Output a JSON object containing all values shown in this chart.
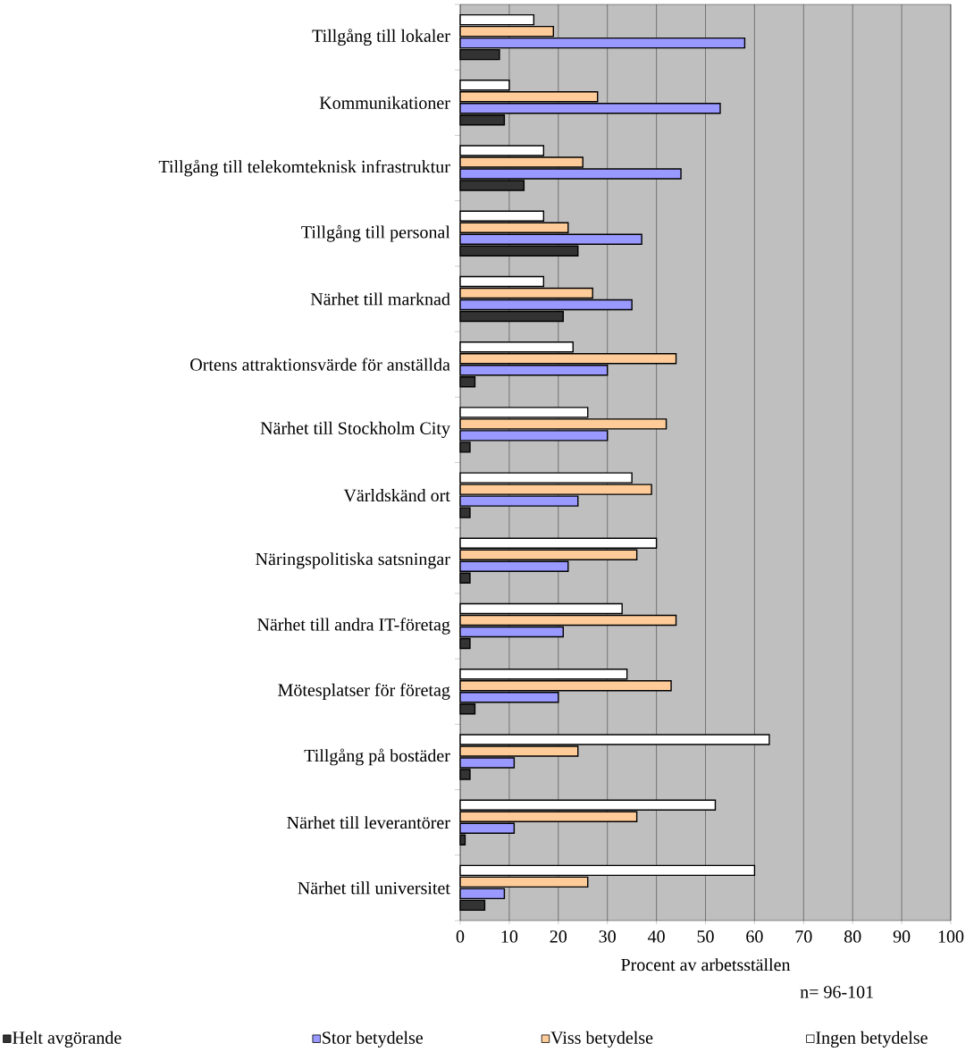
{
  "chart_data": {
    "type": "bar",
    "orientation": "horizontal",
    "xlabel": "Procent av arbetsställen",
    "categories": [
      "Tillgång till lokaler",
      "Kommunikationer",
      "Tillgång till telekomteknisk infrastruktur",
      "Tillgång till personal",
      "Närhet till marknad",
      "Ortens attraktionsvärde för anställda",
      "Närhet till Stockholm City",
      "Världskänd ort",
      "Näringspolitiska satsningar",
      "Närhet till andra IT-företag",
      "Mötesplatser för företag",
      "Tillgång på bostäder",
      "Närhet till leverantörer",
      "Närhet till universitet"
    ],
    "series": [
      {
        "name": "Helt avgörande",
        "color": "#333333",
        "values": [
          8,
          9,
          13,
          24,
          21,
          3,
          2,
          2,
          2,
          2,
          3,
          2,
          1,
          5
        ]
      },
      {
        "name": "Stor betydelse",
        "color": "#9999ff",
        "values": [
          58,
          53,
          45,
          37,
          35,
          30,
          30,
          24,
          22,
          21,
          20,
          11,
          11,
          9
        ]
      },
      {
        "name": "Viss betydelse",
        "color": "#ffcc99",
        "values": [
          19,
          28,
          25,
          22,
          27,
          44,
          42,
          39,
          36,
          44,
          43,
          24,
          36,
          26
        ]
      },
      {
        "name": "Ingen betydelse",
        "color": "#ffffff",
        "values": [
          15,
          10,
          17,
          17,
          17,
          23,
          26,
          35,
          40,
          33,
          34,
          63,
          52,
          60
        ]
      }
    ],
    "xlim": [
      0,
      100
    ],
    "xticks": [
      0,
      10,
      20,
      30,
      40,
      50,
      60,
      70,
      80,
      90,
      100
    ],
    "grid": "x",
    "legend": "bottom",
    "annotations": [
      "n= 96-101"
    ]
  }
}
